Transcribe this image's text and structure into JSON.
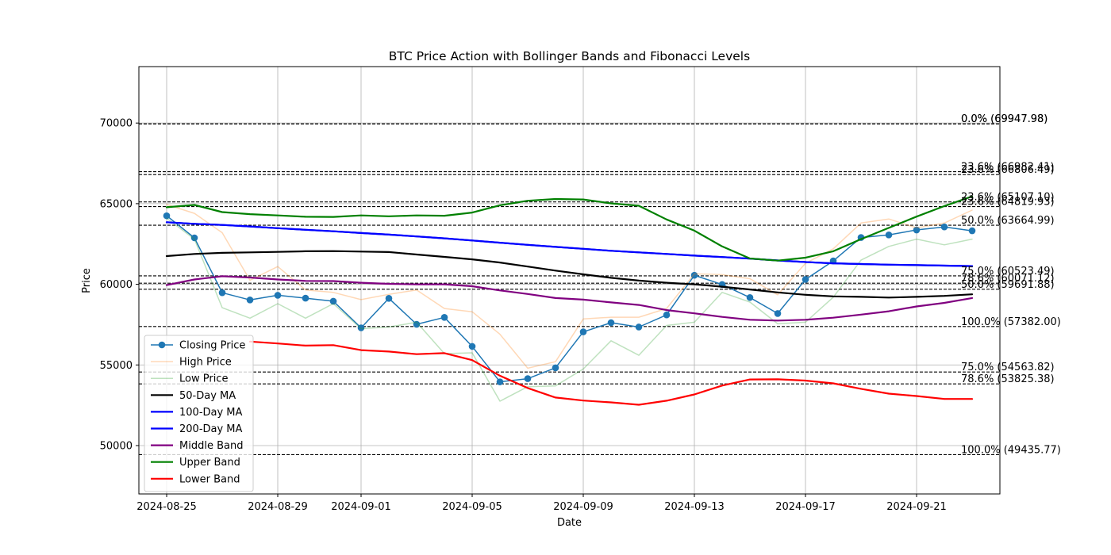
{
  "chart_data": {
    "type": "line",
    "title": "BTC Price Action with Bollinger Bands and Fibonacci Levels",
    "xlabel": "Date",
    "ylabel": "Price",
    "xlim": [
      "2024-08-24",
      "2024-09-24"
    ],
    "ylim": [
      47000,
      73500
    ],
    "grid": true,
    "legend_position": "lower-left",
    "x_ticks": [
      "2024-08-25",
      "2024-08-29",
      "2024-09-01",
      "2024-09-05",
      "2024-09-09",
      "2024-09-13",
      "2024-09-17",
      "2024-09-21"
    ],
    "y_ticks": [
      50000,
      55000,
      60000,
      65000,
      70000
    ],
    "y_tick_labels": [
      "50000",
      "55000",
      "60000",
      "65000",
      "70000"
    ],
    "x": [
      "2024-08-25",
      "2024-08-26",
      "2024-08-27",
      "2024-08-28",
      "2024-08-29",
      "2024-08-30",
      "2024-08-31",
      "2024-09-01",
      "2024-09-02",
      "2024-09-03",
      "2024-09-04",
      "2024-09-05",
      "2024-09-06",
      "2024-09-07",
      "2024-09-08",
      "2024-09-09",
      "2024-09-10",
      "2024-09-11",
      "2024-09-12",
      "2024-09-13",
      "2024-09-14",
      "2024-09-15",
      "2024-09-16",
      "2024-09-17",
      "2024-09-18",
      "2024-09-19",
      "2024-09-20",
      "2024-09-21",
      "2024-09-22",
      "2024-09-23"
    ],
    "series": [
      {
        "name": "Closing Price",
        "color": "#1f77b4",
        "marker": true,
        "width": 1.5,
        "opacity": 1,
        "values": [
          64250,
          62880,
          59480,
          59030,
          59320,
          59140,
          58950,
          57300,
          59130,
          57520,
          57950,
          56150,
          53950,
          54150,
          54820,
          57050,
          57620,
          57350,
          58100,
          60560,
          59990,
          59180,
          58190,
          60300,
          61450,
          62900,
          63060,
          63370,
          63560,
          63320
        ]
      },
      {
        "name": "High Price",
        "color": "#ff7f0e",
        "marker": false,
        "width": 1.5,
        "opacity": 0.3,
        "values": [
          64950,
          64400,
          63200,
          60250,
          61100,
          59650,
          59500,
          59050,
          59380,
          59650,
          58500,
          58300,
          56900,
          54800,
          55200,
          57850,
          57960,
          57960,
          58500,
          60650,
          60600,
          60350,
          59350,
          61300,
          62200,
          63800,
          64050,
          63500,
          63800,
          64600
        ]
      },
      {
        "name": "Low Price",
        "color": "#2ca02c",
        "marker": false,
        "width": 1.5,
        "opacity": 0.3,
        "values": [
          64100,
          62800,
          58550,
          57900,
          58800,
          57900,
          58800,
          57250,
          57350,
          57650,
          55700,
          55750,
          52750,
          53650,
          53700,
          54750,
          56500,
          55600,
          57450,
          57650,
          59500,
          58900,
          57550,
          57650,
          59200,
          61500,
          62350,
          62800,
          62450,
          62800
        ]
      },
      {
        "name": "50-Day MA",
        "color": "#000000",
        "marker": false,
        "width": 2.2,
        "opacity": 1,
        "values": [
          61750,
          61880,
          61950,
          61980,
          62010,
          62050,
          62060,
          62030,
          62000,
          61850,
          61700,
          61550,
          61350,
          61100,
          60850,
          60620,
          60400,
          60230,
          60100,
          60000,
          59850,
          59680,
          59500,
          59350,
          59250,
          59220,
          59180,
          59220,
          59280,
          59380
        ]
      },
      {
        "name": "100-Day MA",
        "color": "#0000ff",
        "marker": false,
        "width": 2.2,
        "opacity": 1,
        "values": [
          63850,
          63750,
          63680,
          63590,
          63480,
          63380,
          63290,
          63180,
          63080,
          62970,
          62850,
          62720,
          62580,
          62450,
          62320,
          62200,
          62080,
          61980,
          61880,
          61780,
          61690,
          61590,
          61480,
          61380,
          61300,
          61260,
          61220,
          61190,
          61160,
          61130
        ]
      },
      {
        "name": "200-Day MA",
        "color": "#0000ff",
        "marker": false,
        "width": 2.2,
        "opacity": 1,
        "values": [
          63850,
          63750,
          63680,
          63590,
          63480,
          63380,
          63290,
          63180,
          63080,
          62970,
          62850,
          62720,
          62580,
          62450,
          62320,
          62200,
          62080,
          61980,
          61880,
          61780,
          61690,
          61590,
          61480,
          61380,
          61300,
          61260,
          61220,
          61190,
          61160,
          61130
        ]
      },
      {
        "name": "Middle Band",
        "color": "#800080",
        "marker": false,
        "width": 2.2,
        "opacity": 1,
        "values": [
          59950,
          60300,
          60500,
          60420,
          60300,
          60210,
          60200,
          60100,
          60030,
          60000,
          60000,
          59880,
          59620,
          59400,
          59150,
          59050,
          58880,
          58720,
          58400,
          58200,
          57980,
          57800,
          57750,
          57800,
          57930,
          58120,
          58330,
          58630,
          58850,
          59150
        ]
      },
      {
        "name": "Upper Band",
        "color": "#008000",
        "marker": false,
        "width": 2.2,
        "opacity": 1,
        "values": [
          64780,
          64920,
          64480,
          64350,
          64270,
          64190,
          64180,
          64270,
          64220,
          64270,
          64250,
          64450,
          64900,
          65180,
          65290,
          65260,
          65020,
          64870,
          64020,
          63330,
          62350,
          61600,
          61470,
          61650,
          62050,
          62800,
          63500,
          64200,
          64850,
          65450
        ]
      },
      {
        "name": "Lower Band",
        "color": "#ff0000",
        "marker": false,
        "width": 2.2,
        "opacity": 1,
        "values": [
          null,
          null,
          null,
          56450,
          56330,
          56200,
          56230,
          55920,
          55830,
          55670,
          55730,
          55300,
          54330,
          53570,
          52980,
          52790,
          52680,
          52530,
          52780,
          53170,
          53720,
          54100,
          54110,
          54030,
          53860,
          53520,
          53220,
          53070,
          52890,
          52890
        ]
      }
    ],
    "fibonacci_levels": [
      {
        "value": 69947.98,
        "label": "0.0% (69947.98)"
      },
      {
        "value": 69947.98,
        "label": "0.0% (69947.98)"
      },
      {
        "value": 66982.41,
        "label": "23.6% (66982.41)"
      },
      {
        "value": 66806.49,
        "label": "23.6% (66806.49)"
      },
      {
        "value": 65107.1,
        "label": "23.6% (65107.10)"
      },
      {
        "value": 64819.93,
        "label": "23.6% (64819.93)"
      },
      {
        "value": 63664.99,
        "label": "50.0% (63664.99)"
      },
      {
        "value": 60523.49,
        "label": "75.0% (60523.49)"
      },
      {
        "value": 60071.12,
        "label": "78.6% (60071.12)"
      },
      {
        "value": 59691.88,
        "label": "50.0% (59691.88)"
      },
      {
        "value": 57382.0,
        "label": "100.0% (57382.00)"
      },
      {
        "value": 54563.82,
        "label": "75.0% (54563.82)"
      },
      {
        "value": 53825.38,
        "label": "78.6% (53825.38)"
      },
      {
        "value": 49435.77,
        "label": "100.0% (49435.77)"
      }
    ]
  }
}
